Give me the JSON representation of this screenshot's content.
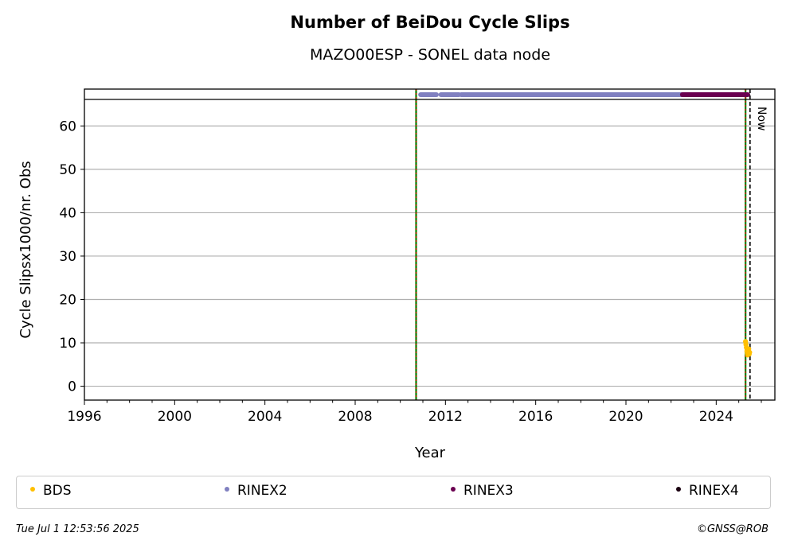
{
  "header": {
    "title": "Number of BeiDou Cycle Slips",
    "subtitle": "MAZO00ESP - SONEL data node"
  },
  "footer": {
    "timestamp": "Tue Jul  1 12:53:56 2025",
    "copyright": "©GNSS@ROB"
  },
  "colors": {
    "BDS": "#ffbf00",
    "RINEX2": "#8080c0",
    "RINEX3": "#6a0050",
    "RINEX4": "#1a0010",
    "green_line": "#008000",
    "red_line": "#ff0000"
  },
  "chart_data": {
    "type": "scatter",
    "title": "Number of BeiDou Cycle Slips",
    "subtitle": "MAZO00ESP - SONEL data node",
    "xlabel": "Year",
    "ylabel": "Cycle Slipsx1000/nr. Obs",
    "xlim": [
      1996,
      2026.6
    ],
    "ylim": [
      -3.2,
      68.5
    ],
    "xticks": [
      1996,
      2000,
      2004,
      2008,
      2012,
      2016,
      2020,
      2024
    ],
    "yticks": [
      0,
      10,
      20,
      30,
      40,
      50,
      60
    ],
    "grid": "horizontal",
    "legend_position": "bottom",
    "now_label": "Now",
    "now_year": 2025.5,
    "vertical_lines": [
      {
        "x": 2010.7,
        "style": "green-red dashed"
      },
      {
        "x": 2025.3,
        "style": "green-red dashed"
      }
    ],
    "series": [
      {
        "name": "BDS",
        "kind": "points",
        "x": [
          2025.3,
          2025.32,
          2025.34,
          2025.36,
          2025.38,
          2025.4,
          2025.42,
          2025.44,
          2025.46,
          2025.48
        ],
        "y": [
          10.3,
          9.6,
          8.9,
          8.1,
          7.6,
          7.2,
          7.9,
          8.6,
          7.4,
          7.8
        ]
      },
      {
        "name": "RINEX2",
        "kind": "band",
        "segments": [
          [
            2010.9,
            2011.6
          ],
          [
            2011.8,
            2012.6
          ],
          [
            2012.7,
            2022.5
          ]
        ]
      },
      {
        "name": "RINEX3",
        "kind": "band",
        "segments": [
          [
            2022.5,
            2025.4
          ]
        ]
      },
      {
        "name": "RINEX4",
        "kind": "band",
        "segments": []
      }
    ]
  }
}
